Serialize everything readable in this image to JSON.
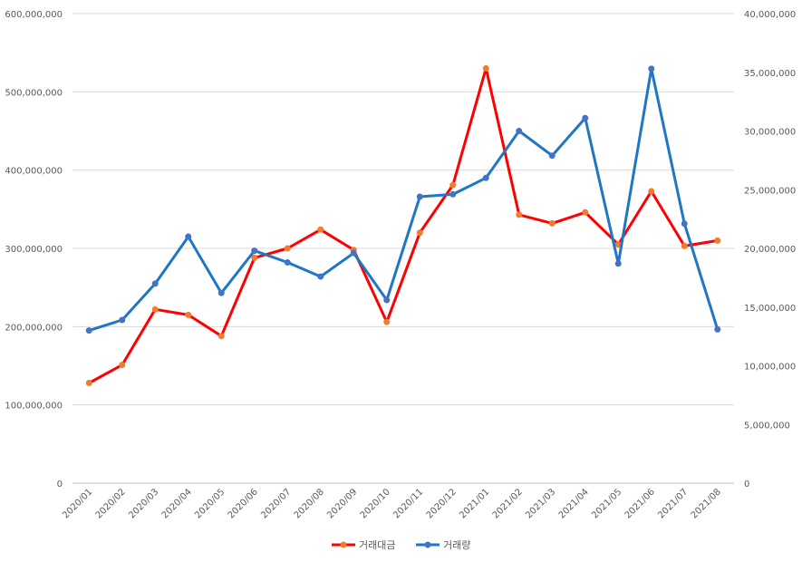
{
  "chart_data": {
    "type": "line",
    "title": "",
    "xlabel": "",
    "ylabel": "",
    "categories": [
      "2020/01",
      "2020/02",
      "2020/03",
      "2020/04",
      "2020/05",
      "2020/06",
      "2020/07",
      "2020/08",
      "2020/09",
      "2020/10",
      "2020/11",
      "2020/12",
      "2021/01",
      "2021/02",
      "2021/03",
      "2021/04",
      "2021/05",
      "2021/06",
      "2021/07",
      "2021/08"
    ],
    "ylim": [
      0,
      600000000
    ],
    "y2lim": [
      0,
      40000000
    ],
    "y_ticks": [
      {
        "value": 0,
        "label": "0"
      },
      {
        "value": 100000000,
        "label": "100,000,000"
      },
      {
        "value": 200000000,
        "label": "200,000,000"
      },
      {
        "value": 300000000,
        "label": "300,000,000"
      },
      {
        "value": 400000000,
        "label": "400,000,000"
      },
      {
        "value": 500000000,
        "label": "500,000,000"
      },
      {
        "value": 600000000,
        "label": "600,000,000"
      }
    ],
    "y2_ticks": [
      {
        "value": 0,
        "label": "0"
      },
      {
        "value": 5000000,
        "label": "5,000,000"
      },
      {
        "value": 10000000,
        "label": "10,000,000"
      },
      {
        "value": 15000000,
        "label": "15,000,000"
      },
      {
        "value": 20000000,
        "label": "20,000,000"
      },
      {
        "value": 25000000,
        "label": "25,000,000"
      },
      {
        "value": 30000000,
        "label": "30,000,000"
      },
      {
        "value": 35000000,
        "label": "35,000,000"
      },
      {
        "value": 40000000,
        "label": "40,000,000"
      }
    ],
    "grid": true,
    "legend_position": "bottom",
    "series": [
      {
        "name": "거래대금",
        "axis": "left",
        "line_color": "#ff0000",
        "marker_color": "#ed7d31",
        "values": [
          128000000,
          151000000,
          222000000,
          215000000,
          188000000,
          288000000,
          300000000,
          324000000,
          298000000,
          206000000,
          320000000,
          381000000,
          530000000,
          343000000,
          332000000,
          346000000,
          305000000,
          373000000,
          303000000,
          310000000
        ]
      },
      {
        "name": "거래량",
        "axis": "right",
        "line_color": "#1f77c4",
        "marker_color": "#4472c4",
        "values": [
          13000000,
          13900000,
          17000000,
          21000000,
          16200000,
          19800000,
          18800000,
          17600000,
          19600000,
          15600000,
          24400000,
          24600000,
          26000000,
          30000000,
          27900000,
          31100000,
          18700000,
          35300000,
          22100000,
          13100000
        ]
      }
    ]
  }
}
